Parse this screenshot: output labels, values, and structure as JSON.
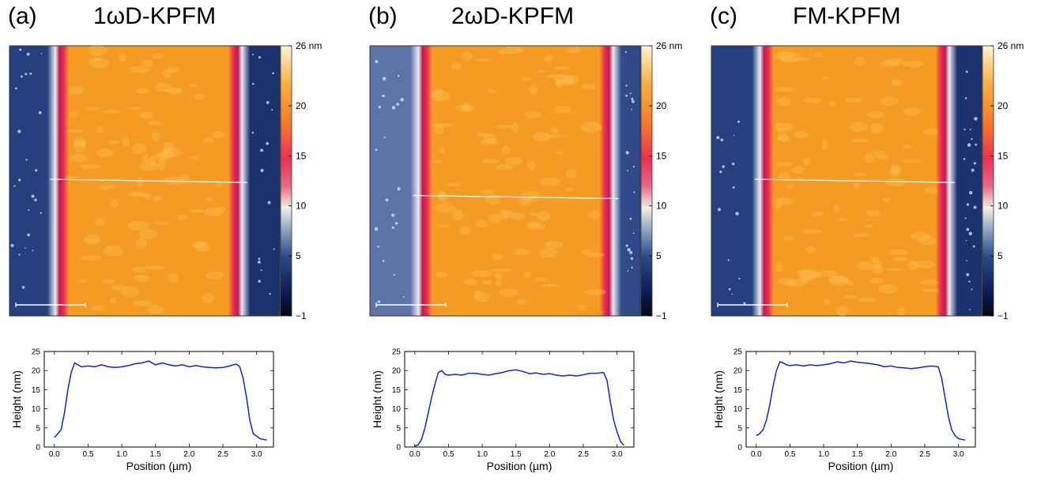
{
  "chart_data": [
    {
      "type": "line",
      "panel_label": "(a)",
      "title": "1ωD-KPFM",
      "colorbar": {
        "unit_label": "26 nm",
        "ticks": [
          "26 nm",
          "20",
          "15",
          "10",
          "5",
          "−1"
        ],
        "tick_values": [
          26,
          20,
          15,
          10,
          5,
          -1
        ],
        "range": [
          -1,
          26
        ]
      },
      "image": {
        "edge_left": 0.19,
        "edge_right": 0.84,
        "line_y": 0.5,
        "scale_bar": true
      },
      "profile": {
        "xlabel": "Position (µm)",
        "ylabel": "Height (nm)",
        "xlim": [
          -0.15,
          3.25
        ],
        "ylim": [
          0,
          25
        ],
        "xticks": [
          0.0,
          0.5,
          1.0,
          1.5,
          2.0,
          2.5,
          3.0
        ],
        "xtick_labels": [
          "0.0",
          "0.5",
          "1.0",
          "1.5",
          "2.0",
          "2.5",
          "3.0"
        ],
        "yticks": [
          0,
          5,
          10,
          15,
          20,
          25
        ],
        "ytick_labels": [
          "0",
          "5",
          "10",
          "15",
          "20",
          "25"
        ],
        "x": [
          0.0,
          0.05,
          0.1,
          0.15,
          0.2,
          0.25,
          0.3,
          0.35,
          0.4,
          0.5,
          0.6,
          0.7,
          0.8,
          0.9,
          1.0,
          1.1,
          1.2,
          1.3,
          1.4,
          1.5,
          1.6,
          1.7,
          1.8,
          1.9,
          2.0,
          2.1,
          2.2,
          2.3,
          2.4,
          2.5,
          2.6,
          2.65,
          2.7,
          2.75,
          2.8,
          2.85,
          2.9,
          2.95,
          3.0,
          3.05,
          3.1,
          3.15
        ],
        "y": [
          2.5,
          3.5,
          4.5,
          9,
          15,
          19.5,
          22,
          21.5,
          21,
          21.2,
          21,
          21.5,
          21,
          20.8,
          21,
          21.3,
          21.8,
          22,
          22.5,
          21.5,
          22,
          21.5,
          21.2,
          21.5,
          21,
          21.3,
          21,
          20.8,
          20.7,
          20.8,
          21.2,
          21.5,
          21.7,
          21,
          18,
          13,
          7,
          3.5,
          2.8,
          2.2,
          2.0,
          1.8
        ]
      }
    },
    {
      "type": "line",
      "panel_label": "(b)",
      "title": "2ωD-KPFM",
      "colorbar": {
        "unit_label": "26 nm",
        "ticks": [
          "26 nm",
          "20",
          "15",
          "10",
          "5",
          "−1"
        ],
        "tick_values": [
          26,
          20,
          15,
          10,
          5,
          -1
        ],
        "range": [
          -1,
          26
        ]
      },
      "image": {
        "edge_left": 0.2,
        "edge_right": 0.88,
        "line_y": 0.56,
        "scale_bar": true
      },
      "profile": {
        "xlabel": "Position (µm)",
        "ylabel": "Height (nm)",
        "xlim": [
          -0.15,
          3.25
        ],
        "ylim": [
          0,
          25
        ],
        "xticks": [
          0.0,
          0.5,
          1.0,
          1.5,
          2.0,
          2.5,
          3.0
        ],
        "xtick_labels": [
          "0.0",
          "0.5",
          "1.0",
          "1.5",
          "2.0",
          "2.5",
          "3.0"
        ],
        "yticks": [
          0,
          5,
          10,
          15,
          20,
          25
        ],
        "ytick_labels": [
          "0",
          "5",
          "10",
          "15",
          "20",
          "25"
        ],
        "x": [
          0.0,
          0.05,
          0.1,
          0.15,
          0.2,
          0.25,
          0.3,
          0.35,
          0.4,
          0.45,
          0.5,
          0.6,
          0.7,
          0.8,
          0.9,
          1.0,
          1.1,
          1.2,
          1.3,
          1.4,
          1.5,
          1.6,
          1.7,
          1.8,
          1.9,
          2.0,
          2.1,
          2.2,
          2.3,
          2.4,
          2.5,
          2.6,
          2.7,
          2.8,
          2.85,
          2.9,
          2.95,
          3.0,
          3.05,
          3.1
        ],
        "y": [
          0.2,
          0.6,
          2,
          5,
          9,
          13,
          16.5,
          19.5,
          20,
          19,
          18.8,
          19,
          18.8,
          19.3,
          19.3,
          19,
          18.8,
          19.2,
          19.5,
          20,
          20.2,
          19.8,
          19.2,
          19.4,
          19,
          19.2,
          18.8,
          18.6,
          18.8,
          18.6,
          18.9,
          19.3,
          19.3,
          19.5,
          17.5,
          12,
          7,
          4,
          1.5,
          0.5
        ]
      }
    },
    {
      "type": "line",
      "panel_label": "(c)",
      "title": "FM-KPFM",
      "colorbar": {
        "unit_label": "26 nm",
        "ticks": [
          "26 nm",
          "20",
          "15",
          "10",
          "5",
          "−1"
        ],
        "tick_values": [
          26,
          20,
          15,
          10,
          5,
          -1
        ],
        "range": [
          -1,
          26
        ]
      },
      "image": {
        "edge_left": 0.2,
        "edge_right": 0.86,
        "line_y": 0.5,
        "scale_bar": true
      },
      "profile": {
        "xlabel": "Position (µm)",
        "ylabel": "Height (nm)",
        "xlim": [
          -0.15,
          3.25
        ],
        "ylim": [
          0,
          25
        ],
        "xticks": [
          0.0,
          0.5,
          1.0,
          1.5,
          2.0,
          2.5,
          3.0
        ],
        "xtick_labels": [
          "0.0",
          "0.5",
          "1.0",
          "1.5",
          "2.0",
          "2.5",
          "3.0"
        ],
        "yticks": [
          0,
          5,
          10,
          15,
          20,
          25
        ],
        "ytick_labels": [
          "0",
          "5",
          "10",
          "15",
          "20",
          "25"
        ],
        "x": [
          0.0,
          0.05,
          0.1,
          0.15,
          0.2,
          0.25,
          0.3,
          0.35,
          0.4,
          0.45,
          0.5,
          0.6,
          0.7,
          0.8,
          0.9,
          1.0,
          1.1,
          1.2,
          1.3,
          1.4,
          1.5,
          1.6,
          1.7,
          1.8,
          1.9,
          2.0,
          2.1,
          2.2,
          2.3,
          2.4,
          2.5,
          2.6,
          2.7,
          2.75,
          2.8,
          2.85,
          2.9,
          2.95,
          3.0,
          3.05,
          3.1
        ],
        "y": [
          3,
          3.5,
          4.5,
          7,
          11,
          16,
          20,
          22.3,
          22,
          21.5,
          21.3,
          21.5,
          21.2,
          21.5,
          21.3,
          21.5,
          21.8,
          22.3,
          22,
          22.5,
          22.2,
          22,
          21.8,
          21.5,
          21,
          21.2,
          20.8,
          20.7,
          20.5,
          20.7,
          21,
          21.2,
          21,
          18,
          13,
          8,
          4.5,
          3,
          2.2,
          2.0,
          1.8
        ]
      }
    }
  ]
}
